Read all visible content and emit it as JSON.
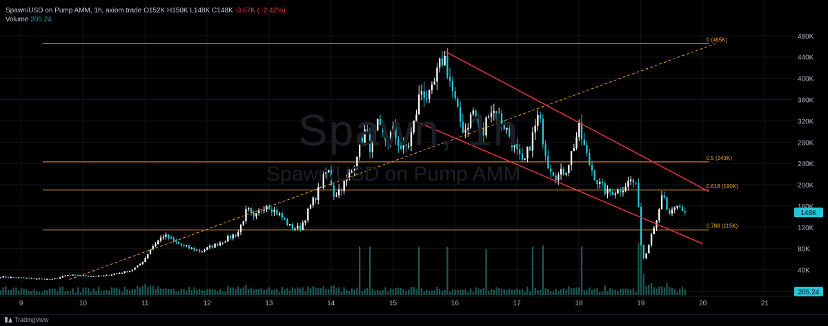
{
  "header": {
    "line1": "Spawn/USD on Pump AMM, 1h, axiom.trade",
    "ohlc": "O152K  H150K  L148K  C148K",
    "change": "-3.67K (−2.42%)",
    "volume_label": "Volume",
    "volume_value": "205.24"
  },
  "watermark": {
    "big": "Spawn, 1h",
    "small": "Spawn/USD on Pump AMM"
  },
  "footer": {
    "brand": "TradingView"
  },
  "colors": {
    "up": "#ffffff",
    "down": "#26c6da",
    "fib": "#f0a030",
    "channel": "#f23645",
    "grid": "#14171d",
    "axis_text": "#b2b5be",
    "price_badge": "#26c6da",
    "volume": "#1f6f6a"
  },
  "chart_data": {
    "type": "candlestick",
    "ylim": [
      0,
      500
    ],
    "y_ticks": [
      0,
      40,
      80,
      120,
      160,
      200,
      240,
      280,
      320,
      360,
      400,
      440,
      480
    ],
    "y_tick_labels": [
      "0",
      "40K",
      "80K",
      "120K",
      "160K",
      "200K",
      "240K",
      "280K",
      "320K",
      "360K",
      "400K",
      "440K",
      "480K"
    ],
    "x_ticks": [
      9,
      10,
      11,
      12,
      13,
      14,
      15,
      16,
      17,
      18,
      19,
      20,
      21
    ],
    "x_tick_labels": [
      "9",
      "10",
      "11",
      "12",
      "13",
      "14",
      "15",
      "16",
      "17",
      "18",
      "19",
      "20",
      "21"
    ],
    "xlim": [
      8.66,
      21.44
    ],
    "last_price_label": "148K",
    "last_price": 148,
    "last_volume_label": "205.24",
    "fib_levels": [
      {
        "label": "0 (465K)",
        "value": 465
      },
      {
        "label": "0.5 (243K)",
        "value": 243
      },
      {
        "label": "0.618 (190K)",
        "value": 190
      },
      {
        "label": "0.786 (115K)",
        "value": 115
      }
    ],
    "fib_start_x": 9.35,
    "fib_end_x": 20.1,
    "trend_line": {
      "x1": 9.78,
      "y1": 22,
      "x2": 20.2,
      "y2": 465
    },
    "channel": [
      {
        "x1": 15.85,
        "y1": 450,
        "x2": 20.1,
        "y2": 187
      },
      {
        "x1": 15.35,
        "y1": 320,
        "x2": 20.0,
        "y2": 89
      }
    ],
    "price_keypoints": [
      [
        8.67,
        27
      ],
      [
        9.5,
        22
      ],
      [
        9.75,
        30
      ],
      [
        10.3,
        28
      ],
      [
        10.75,
        38
      ],
      [
        10.9,
        48
      ],
      [
        11.0,
        62
      ],
      [
        11.1,
        82
      ],
      [
        11.3,
        105
      ],
      [
        11.6,
        85
      ],
      [
        11.9,
        75
      ],
      [
        12.15,
        88
      ],
      [
        12.5,
        110
      ],
      [
        12.65,
        155
      ],
      [
        12.75,
        135
      ],
      [
        12.95,
        165
      ],
      [
        13.2,
        140
      ],
      [
        13.35,
        120
      ],
      [
        13.5,
        118
      ],
      [
        13.65,
        155
      ],
      [
        13.8,
        190
      ],
      [
        13.95,
        230
      ],
      [
        14.05,
        180
      ],
      [
        14.2,
        200
      ],
      [
        14.35,
        230
      ],
      [
        14.45,
        275
      ],
      [
        14.55,
        300
      ],
      [
        14.65,
        265
      ],
      [
        14.75,
        310
      ],
      [
        14.9,
        280
      ],
      [
        15.0,
        300
      ],
      [
        15.15,
        265
      ],
      [
        15.25,
        275
      ],
      [
        15.35,
        320
      ],
      [
        15.45,
        380
      ],
      [
        15.6,
        360
      ],
      [
        15.72,
        410
      ],
      [
        15.82,
        445
      ],
      [
        15.95,
        380
      ],
      [
        16.05,
        330
      ],
      [
        16.15,
        300
      ],
      [
        16.3,
        340
      ],
      [
        16.45,
        290
      ],
      [
        16.55,
        345
      ],
      [
        16.7,
        330
      ],
      [
        16.85,
        300
      ],
      [
        17.0,
        260
      ],
      [
        17.1,
        235
      ],
      [
        17.25,
        290
      ],
      [
        17.35,
        330
      ],
      [
        17.5,
        240
      ],
      [
        17.65,
        215
      ],
      [
        17.8,
        230
      ],
      [
        18.0,
        305
      ],
      [
        18.15,
        245
      ],
      [
        18.3,
        205
      ],
      [
        18.45,
        185
      ],
      [
        18.65,
        190
      ],
      [
        18.85,
        210
      ],
      [
        18.95,
        188
      ],
      [
        19.0,
        90
      ],
      [
        19.05,
        60
      ],
      [
        19.2,
        120
      ],
      [
        19.3,
        150
      ],
      [
        19.35,
        185
      ],
      [
        19.45,
        140
      ],
      [
        19.6,
        160
      ],
      [
        19.72,
        148
      ]
    ]
  }
}
